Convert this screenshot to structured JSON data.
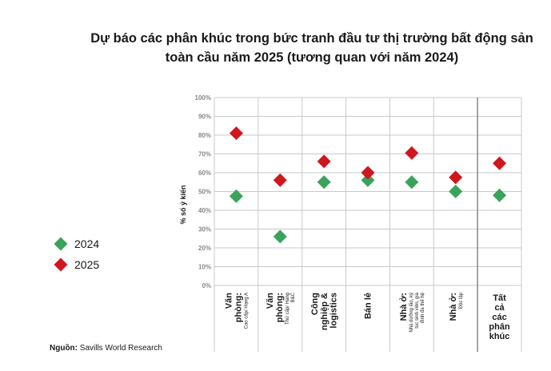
{
  "title_lines": [
    "Dự báo các phân khúc trong bức tranh đầu tư thị trường bất động sản",
    "toàn cầu năm 2025 (tương quan với năm 2024)"
  ],
  "source": {
    "label": "Nguồn:",
    "text": "Savills World Research"
  },
  "chart_data": {
    "type": "scatter",
    "title": "Dự báo các phân khúc trong bức tranh đầu tư thị trường bất động sản toàn cầu năm 2025 (tương quan với năm 2024)",
    "ylabel": "% số ý kiến",
    "ylim": [
      0,
      100
    ],
    "yticks": [
      "0%",
      "10%",
      "20%",
      "30%",
      "40%",
      "50%",
      "60%",
      "70%",
      "80%",
      "90%",
      "100%"
    ],
    "categories": [
      {
        "lines": [
          "Văn",
          "phòng:"
        ],
        "sub": [
          "Cao cấp/ Hạng A"
        ]
      },
      {
        "lines": [
          "Văn",
          "phòng:"
        ],
        "sub": [
          "Thứ cấp/ Hạng",
          "B&C"
        ]
      },
      {
        "lines": [
          "Công",
          "nghiệp &",
          "logistics"
        ],
        "sub": []
      },
      {
        "lines": [
          "Bán lẻ"
        ],
        "sub": []
      },
      {
        "lines": [
          "Nhà ở:"
        ],
        "sub": [
          "Nhà dưỡng lão, ký",
          "túc sinh viên, gia",
          "đình đa thế hệ"
        ]
      },
      {
        "lines": [
          "Nhà ở:"
        ],
        "sub": [
          "Độc lập"
        ]
      },
      {
        "lines": [
          "Tất",
          "cả",
          "các",
          "phân",
          "khúc"
        ],
        "sub": []
      }
    ],
    "series": [
      {
        "name": "2024",
        "color": "#3aa35b",
        "values": [
          47.5,
          26,
          55,
          56,
          55,
          50,
          48
        ]
      },
      {
        "name": "2025",
        "color": "#d0161e",
        "values": [
          81,
          56,
          66,
          60,
          70.5,
          57.5,
          65
        ]
      }
    ],
    "marker": "diamond",
    "grid": true,
    "legend": "left"
  }
}
